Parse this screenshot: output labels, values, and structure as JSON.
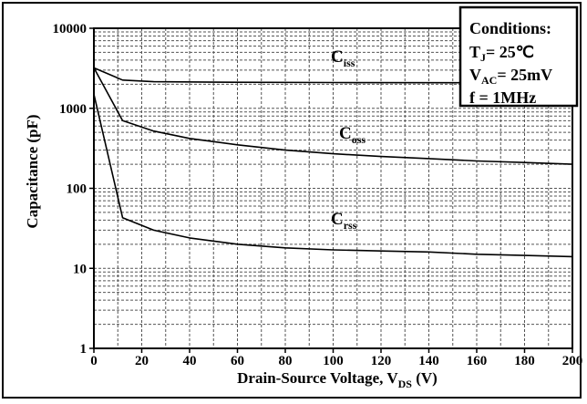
{
  "chart_data": {
    "type": "line",
    "xlabel_main": "Drain-Source Voltage, V",
    "xlabel_sub": "DS",
    "xlabel_unit": " (V)",
    "ylabel": "Capacitance  (pF)",
    "xlim": [
      0,
      200
    ],
    "ylim": [
      1,
      10000
    ],
    "yscale": "log",
    "grid": true,
    "x_ticks": [
      "0",
      "20",
      "40",
      "60",
      "80",
      "100",
      "120",
      "140",
      "160",
      "180",
      "200"
    ],
    "y_ticks": [
      "1",
      "10",
      "100",
      "1000",
      "10000"
    ],
    "series": [
      {
        "name": "C",
        "name_sub": "iss",
        "x": [
          0,
          12,
          25,
          50,
          100,
          150,
          200
        ],
        "values": [
          3200,
          2250,
          2150,
          2120,
          2100,
          2090,
          2080
        ]
      },
      {
        "name": "C",
        "name_sub": "oss",
        "x": [
          0,
          12,
          25,
          40,
          60,
          80,
          100,
          120,
          140,
          160,
          180,
          200
        ],
        "values": [
          3200,
          700,
          520,
          420,
          350,
          300,
          270,
          250,
          235,
          220,
          210,
          200
        ]
      },
      {
        "name": "C",
        "name_sub": "rss",
        "x": [
          0,
          12,
          25,
          40,
          60,
          80,
          100,
          120,
          140,
          160,
          180,
          200
        ],
        "values": [
          1500,
          43,
          30,
          24,
          20,
          18,
          17,
          16.5,
          16,
          15,
          14.5,
          14
        ]
      }
    ]
  },
  "conditions": {
    "title": "Conditions:",
    "tj_main": "T",
    "tj_sub": "J",
    "tj_value": "= 25℃",
    "vac_main": "V",
    "vac_sub": "AC",
    "vac_value": "= 25mV",
    "f_line": "f  =  1MHz"
  },
  "colors": {
    "line": "#000000",
    "grid": "#555555"
  }
}
